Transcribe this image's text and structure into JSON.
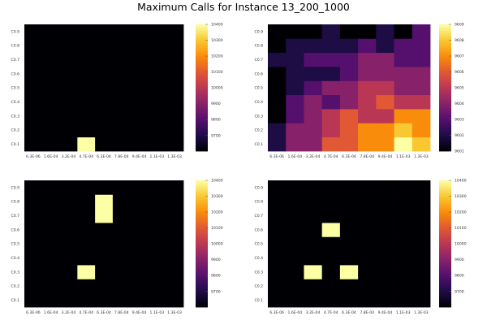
{
  "title": "Maximum Calls for Instance 13_200_1000",
  "chart_data": [
    {
      "type": "heatmap",
      "x_ticks": [
        "6.3E-06",
        "1.6E-04",
        "3.2E-04",
        "4.7E-04",
        "6.3E-04",
        "7.8E-04",
        "9.4E-04",
        "1.1E-03",
        "1.3E-03"
      ],
      "y_ticks": [
        "C0.1",
        "C0.2",
        "C0.3",
        "C0.4",
        "C0.5",
        "C0.6",
        "C0.7",
        "C0.8",
        "C0.9"
      ],
      "colorbar_ticks": [
        "9700",
        "9800",
        "9900",
        "10000",
        "10100",
        "10200",
        "10300",
        "10400"
      ],
      "clim": [
        9601,
        10400
      ],
      "values": [
        [
          9601,
          9601,
          9601,
          10400,
          9601,
          9601,
          9601,
          9601,
          9601
        ],
        [
          9601,
          9601,
          9601,
          9601,
          9601,
          9601,
          9601,
          9601,
          9601
        ],
        [
          9601,
          9601,
          9601,
          9601,
          9601,
          9601,
          9601,
          9601,
          9601
        ],
        [
          9601,
          9601,
          9601,
          9601,
          9601,
          9601,
          9601,
          9601,
          9601
        ],
        [
          9601,
          9601,
          9601,
          9601,
          9601,
          9601,
          9601,
          9601,
          9601
        ],
        [
          9601,
          9601,
          9601,
          9601,
          9601,
          9601,
          9601,
          9601,
          9601
        ],
        [
          9601,
          9601,
          9601,
          9601,
          9601,
          9601,
          9601,
          9601,
          9601
        ],
        [
          9601,
          9601,
          9601,
          9601,
          9601,
          9601,
          9601,
          9601,
          9601
        ],
        [
          9601,
          9601,
          9601,
          9601,
          9601,
          9601,
          9601,
          9601,
          9601
        ]
      ]
    },
    {
      "type": "heatmap",
      "x_ticks": [
        "6.3E-06",
        "1.6E-04",
        "3.2E-04",
        "4.7E-04",
        "6.3E-04",
        "7.8E-04",
        "9.4E-04",
        "1.1E-03",
        "1.3E-03"
      ],
      "y_ticks": [
        "C0.1",
        "C0.2",
        "C0.3",
        "C0.4",
        "C0.5",
        "C0.6",
        "C0.7",
        "C0.8",
        "C0.9"
      ],
      "colorbar_ticks": [
        "9601",
        "9602",
        "9603",
        "9604",
        "9605",
        "9606",
        "9607",
        "9608",
        "9609"
      ],
      "clim": [
        9601,
        9609
      ],
      "values": [
        [
          9602,
          9604,
          9604,
          9606,
          9606,
          9607,
          9607,
          9609,
          9608
        ],
        [
          9602,
          9604,
          9604,
          9605,
          9606,
          9607,
          9607,
          9608,
          9607
        ],
        [
          9601,
          9603,
          9604,
          9605,
          9606,
          9605,
          9605,
          9607,
          9607
        ],
        [
          9601,
          9603,
          9604,
          9603,
          9604,
          9605,
          9606,
          9605,
          9605
        ],
        [
          9601,
          9602,
          9603,
          9604,
          9604,
          9605,
          9605,
          9604,
          9604
        ],
        [
          9601,
          9602,
          9602,
          9602,
          9603,
          9604,
          9604,
          9604,
          9604
        ],
        [
          9602,
          9602,
          9603,
          9603,
          9603,
          9604,
          9604,
          9603,
          9603
        ],
        [
          9601,
          9602,
          9602,
          9602,
          9602,
          9603,
          9602,
          9603,
          9603
        ],
        [
          9601,
          9601,
          9601,
          9602,
          9601,
          9601,
          9602,
          9601,
          9603
        ]
      ]
    },
    {
      "type": "heatmap",
      "x_ticks": [
        "6.3E-06",
        "1.6E-04",
        "3.2E-04",
        "4.7E-04",
        "6.3E-04",
        "7.8E-04",
        "9.4E-04",
        "1.1E-03",
        "1.3E-03"
      ],
      "y_ticks": [
        "C0.1",
        "C0.2",
        "C0.3",
        "C0.4",
        "C0.5",
        "C0.6",
        "C0.7",
        "C0.8",
        "C0.9"
      ],
      "colorbar_ticks": [
        "9700",
        "9800",
        "9900",
        "10000",
        "10100",
        "10200",
        "10300",
        "10400"
      ],
      "clim": [
        9601,
        10400
      ],
      "values": [
        [
          9601,
          9601,
          9601,
          9601,
          9601,
          9601,
          9601,
          9601,
          9601
        ],
        [
          9601,
          9601,
          9601,
          9601,
          9601,
          9601,
          9601,
          9601,
          9601
        ],
        [
          9601,
          9601,
          9601,
          10400,
          9601,
          9601,
          9601,
          9601,
          9601
        ],
        [
          9601,
          9601,
          9601,
          9601,
          9601,
          9601,
          9601,
          9601,
          9601
        ],
        [
          9601,
          9601,
          9601,
          9601,
          9601,
          9601,
          9601,
          9601,
          9601
        ],
        [
          9601,
          9601,
          9601,
          9601,
          9601,
          9601,
          9601,
          9601,
          9601
        ],
        [
          9601,
          9601,
          9601,
          9601,
          10400,
          9601,
          9601,
          9601,
          9601
        ],
        [
          9601,
          9601,
          9601,
          9601,
          10400,
          9601,
          9601,
          9601,
          9601
        ],
        [
          9601,
          9601,
          9601,
          9601,
          9601,
          9601,
          9601,
          9601,
          9601
        ]
      ]
    },
    {
      "type": "heatmap",
      "x_ticks": [
        "6.3E-06",
        "1.6E-04",
        "3.2E-04",
        "4.7E-04",
        "6.3E-04",
        "7.8E-04",
        "9.4E-04",
        "1.1E-03",
        "1.3E-03"
      ],
      "y_ticks": [
        "C0.1",
        "C0.2",
        "C0.3",
        "C0.4",
        "C0.5",
        "C0.6",
        "C0.7",
        "C0.8",
        "C0.9"
      ],
      "colorbar_ticks": [
        "9700",
        "9800",
        "9900",
        "10000",
        "10100",
        "10200",
        "10300",
        "10400"
      ],
      "clim": [
        9601,
        10400
      ],
      "values": [
        [
          9601,
          9601,
          9601,
          9601,
          9601,
          9601,
          9601,
          9601,
          9601
        ],
        [
          9601,
          9601,
          9601,
          9601,
          9601,
          9601,
          9601,
          9601,
          9601
        ],
        [
          9601,
          9601,
          10400,
          9601,
          10400,
          9601,
          9601,
          9601,
          9601
        ],
        [
          9601,
          9601,
          9601,
          9601,
          9601,
          9601,
          9601,
          9601,
          9601
        ],
        [
          9601,
          9601,
          9601,
          9601,
          9601,
          9601,
          9601,
          9601,
          9601
        ],
        [
          9601,
          9601,
          9601,
          10400,
          9601,
          9601,
          9601,
          9601,
          9601
        ],
        [
          9601,
          9601,
          9601,
          9601,
          9601,
          9601,
          9601,
          9601,
          9601
        ],
        [
          9601,
          9601,
          9601,
          9601,
          9601,
          9601,
          9601,
          9601,
          9601
        ],
        [
          9601,
          9601,
          9601,
          9601,
          9601,
          9601,
          9601,
          9601,
          9601
        ]
      ]
    }
  ]
}
